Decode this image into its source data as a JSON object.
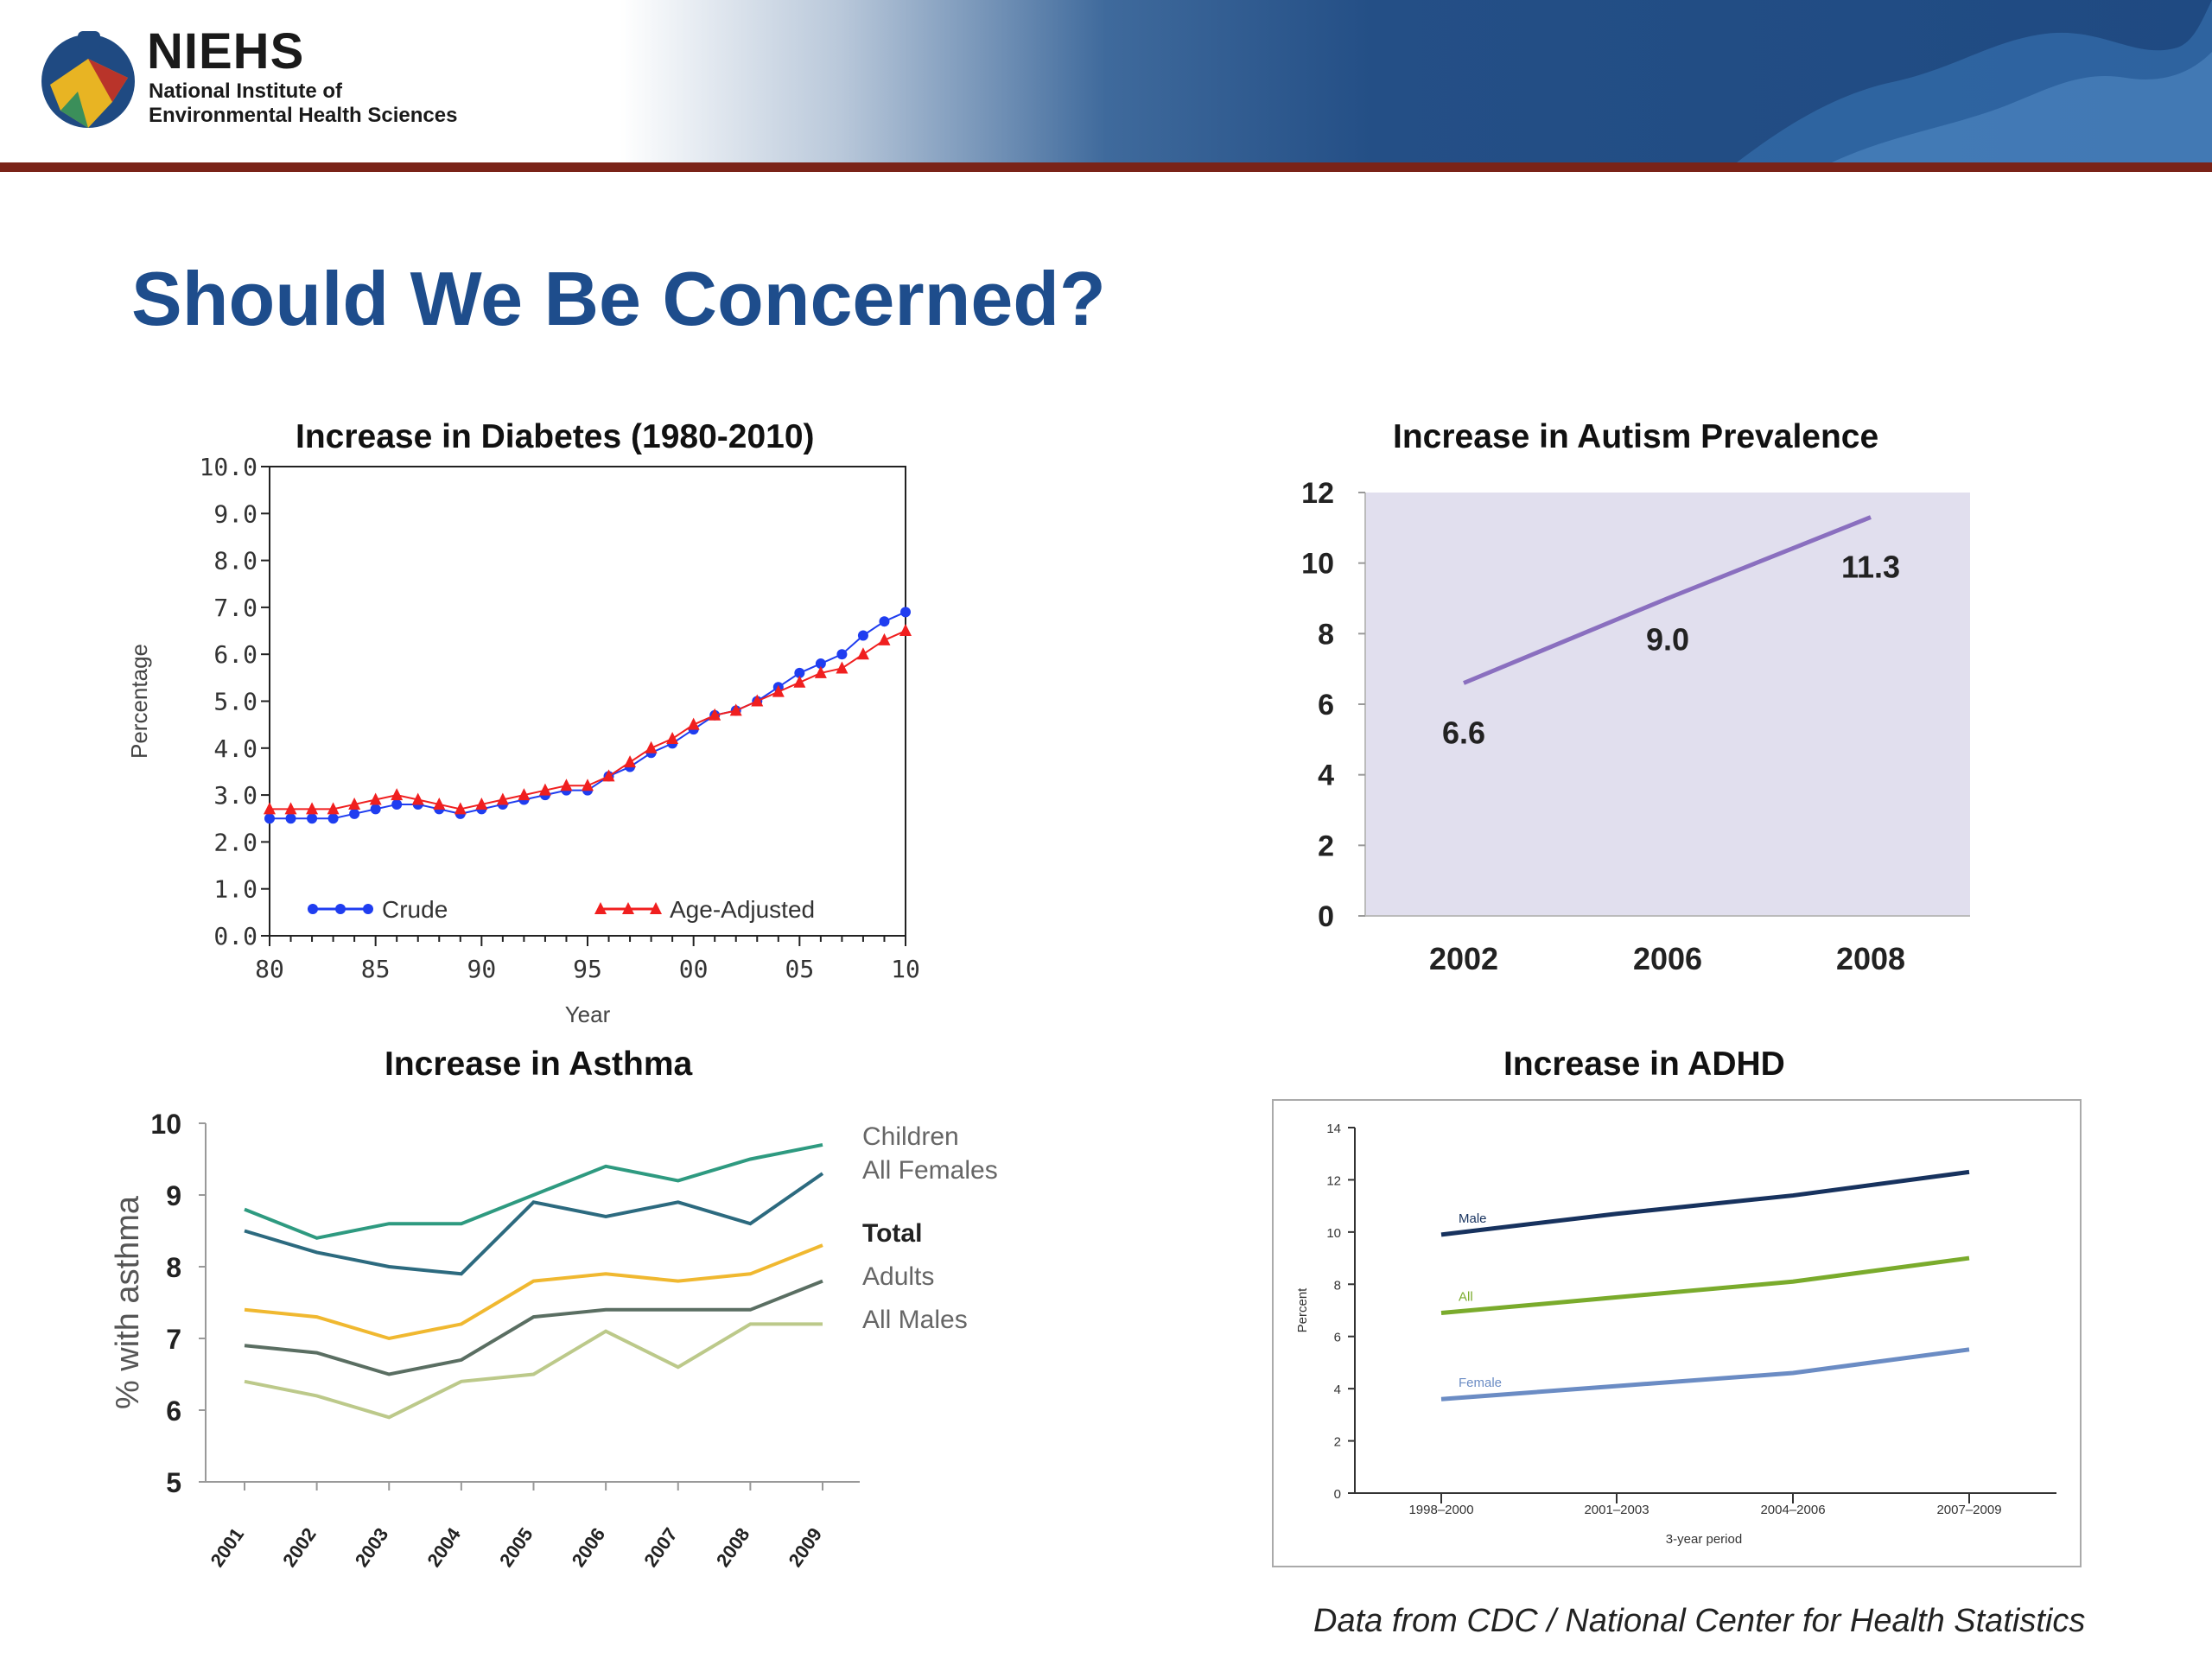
{
  "header": {
    "logo_name": "NIEHS",
    "logo_line1": "National Institute of",
    "logo_line2": "Environmental Health Sciences",
    "logo_icon": "niehs-globe-logo-icon",
    "colors": {
      "banner_blue": "#1f4a82",
      "rule": "#7a2318",
      "title": "#1e4d8c"
    }
  },
  "slide": {
    "title": "Should We Be Concerned?",
    "source": "Data from CDC / National Center for Health Statistics"
  },
  "chart_data": [
    {
      "type": "line",
      "title": "Increase in Diabetes (1980-2010)",
      "xlabel": "Year",
      "ylabel": "Percentage",
      "ylim": [
        0,
        10
      ],
      "xlim": [
        1980,
        2010
      ],
      "yticks": [
        "0.0",
        "1.0",
        "2.0",
        "3.0",
        "4.0",
        "5.0",
        "6.0",
        "7.0",
        "8.0",
        "9.0",
        "10.0"
      ],
      "xticks": [
        "80",
        "85",
        "90",
        "95",
        "00",
        "05",
        "10"
      ],
      "legend": "bottom-inside",
      "x": [
        1980,
        1981,
        1982,
        1983,
        1984,
        1985,
        1986,
        1987,
        1988,
        1989,
        1990,
        1991,
        1992,
        1993,
        1994,
        1995,
        1996,
        1997,
        1998,
        1999,
        2000,
        2001,
        2002,
        2003,
        2004,
        2005,
        2006,
        2007,
        2008,
        2009,
        2010
      ],
      "series": [
        {
          "name": "Crude",
          "color": "#1f3df0",
          "marker": "circle",
          "values": [
            2.5,
            2.5,
            2.5,
            2.5,
            2.6,
            2.7,
            2.8,
            2.8,
            2.7,
            2.6,
            2.7,
            2.8,
            2.9,
            3.0,
            3.1,
            3.1,
            3.4,
            3.6,
            3.9,
            4.1,
            4.4,
            4.7,
            4.8,
            5.0,
            5.3,
            5.6,
            5.8,
            6.0,
            6.4,
            6.7,
            6.9
          ]
        },
        {
          "name": "Age-Adjusted",
          "color": "#f01f1f",
          "marker": "triangle",
          "values": [
            2.7,
            2.7,
            2.7,
            2.7,
            2.8,
            2.9,
            3.0,
            2.9,
            2.8,
            2.7,
            2.8,
            2.9,
            3.0,
            3.1,
            3.2,
            3.2,
            3.4,
            3.7,
            4.0,
            4.2,
            4.5,
            4.7,
            4.8,
            5.0,
            5.2,
            5.4,
            5.6,
            5.7,
            6.0,
            6.3,
            6.5
          ]
        }
      ]
    },
    {
      "type": "line",
      "title": "Increase in Autism Prevalence",
      "ylim": [
        0,
        12
      ],
      "yticks": [
        "0",
        "2",
        "4",
        "6",
        "8",
        "10",
        "12"
      ],
      "categories": [
        "2002",
        "2006",
        "2008"
      ],
      "color": "#8a6fbf",
      "plot_background": "#e1dfee",
      "values": [
        6.6,
        9.0,
        11.3
      ],
      "value_labels": [
        "6.6",
        "9.0",
        "11.3"
      ]
    },
    {
      "type": "line",
      "title": "Increase in Asthma",
      "ylabel": "% with asthma",
      "ylim": [
        5,
        10
      ],
      "yticks": [
        "5",
        "6",
        "7",
        "8",
        "9",
        "10"
      ],
      "categories": [
        "2001",
        "2002",
        "2003",
        "2004",
        "2005",
        "2006",
        "2007",
        "2008",
        "2009"
      ],
      "legend": "right",
      "series": [
        {
          "name": "Children",
          "color": "#2e9a80",
          "values": [
            8.8,
            8.4,
            8.6,
            8.6,
            9.0,
            9.4,
            9.2,
            9.5,
            9.7
          ]
        },
        {
          "name": "All Females",
          "color": "#2c6a7f",
          "values": [
            8.5,
            8.2,
            8.0,
            7.9,
            8.9,
            8.7,
            8.9,
            8.6,
            9.3
          ]
        },
        {
          "name": "Total",
          "color": "#f0b830",
          "values": [
            7.4,
            7.3,
            7.0,
            7.2,
            7.8,
            7.9,
            7.8,
            7.9,
            8.3
          ]
        },
        {
          "name": "Adults",
          "color": "#5a6e62",
          "values": [
            6.9,
            6.8,
            6.5,
            6.7,
            7.3,
            7.4,
            7.4,
            7.4,
            7.8
          ]
        },
        {
          "name": "All Males",
          "color": "#bcc98a",
          "values": [
            6.4,
            6.2,
            5.9,
            6.4,
            6.5,
            7.1,
            6.6,
            7.2,
            7.2
          ]
        }
      ]
    },
    {
      "type": "line",
      "title": "Increase in ADHD",
      "xlabel": "3-year period",
      "ylabel": "Percent",
      "ylim": [
        0,
        14
      ],
      "yticks": [
        "0",
        "2",
        "4",
        "6",
        "8",
        "10",
        "12",
        "14"
      ],
      "categories": [
        "1998–2000",
        "2001–2003",
        "2004–2006",
        "2007–2009"
      ],
      "series": [
        {
          "name": "Male",
          "color": "#17325e",
          "values": [
            9.9,
            10.7,
            11.4,
            12.3
          ]
        },
        {
          "name": "All",
          "color": "#7aab2c",
          "values": [
            6.9,
            7.5,
            8.1,
            9.0
          ]
        },
        {
          "name": "Female",
          "color": "#6b8cc4",
          "values": [
            3.6,
            4.1,
            4.6,
            5.5
          ]
        }
      ]
    }
  ]
}
